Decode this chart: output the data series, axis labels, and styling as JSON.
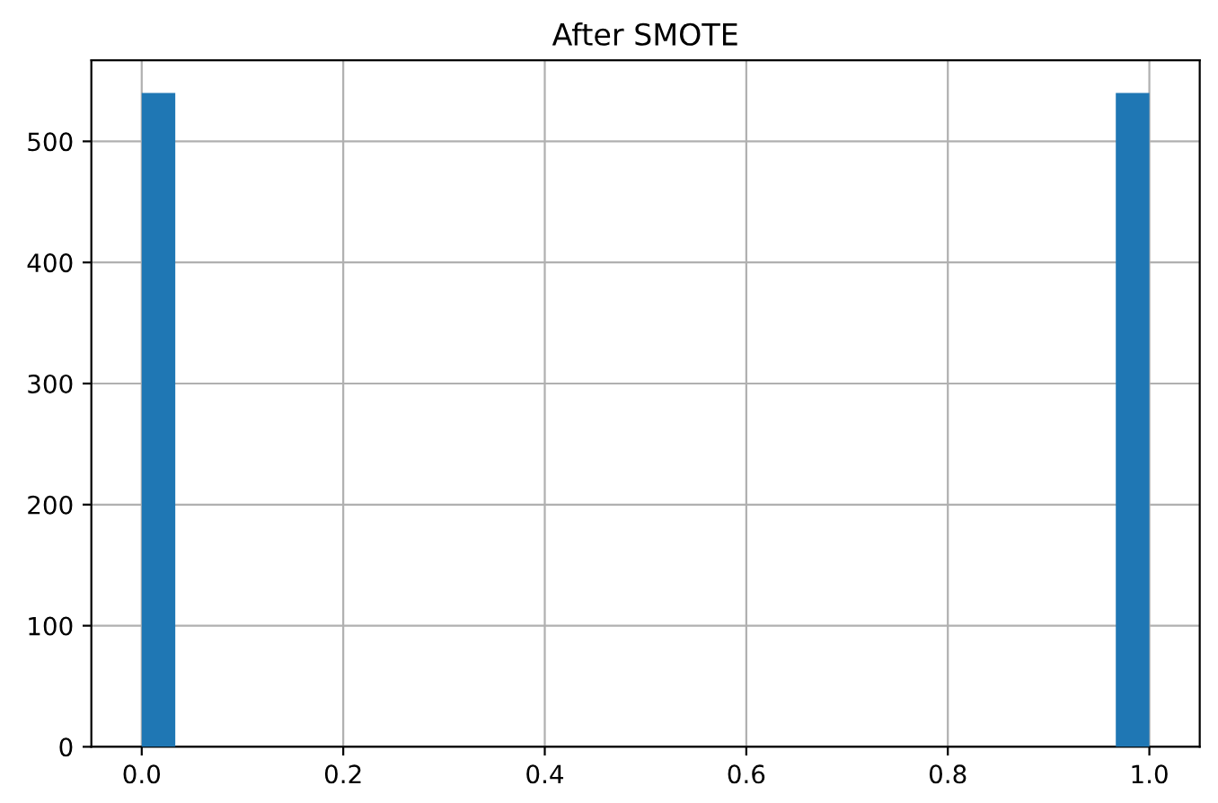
{
  "chart_data": {
    "type": "histogram",
    "title": "After SMOTE",
    "bins": [
      0.0,
      0.0333,
      0.9667,
      1.0
    ],
    "values": [
      540,
      0,
      540
    ],
    "color": "#1f77b4",
    "xlim": [
      -0.05,
      1.05
    ],
    "xticks": [
      {
        "value": 0,
        "label": "0.0"
      },
      {
        "value": 0.2,
        "label": "0.2"
      },
      {
        "value": 0.4,
        "label": "0.4"
      },
      {
        "value": 0.6,
        "label": "0.6"
      },
      {
        "value": 0.8,
        "label": "0.8"
      },
      {
        "value": 1,
        "label": "1.0"
      }
    ],
    "ylim": [
      0,
      567
    ],
    "yticks": [
      0,
      100,
      200,
      300,
      400,
      500
    ],
    "grid": true
  }
}
